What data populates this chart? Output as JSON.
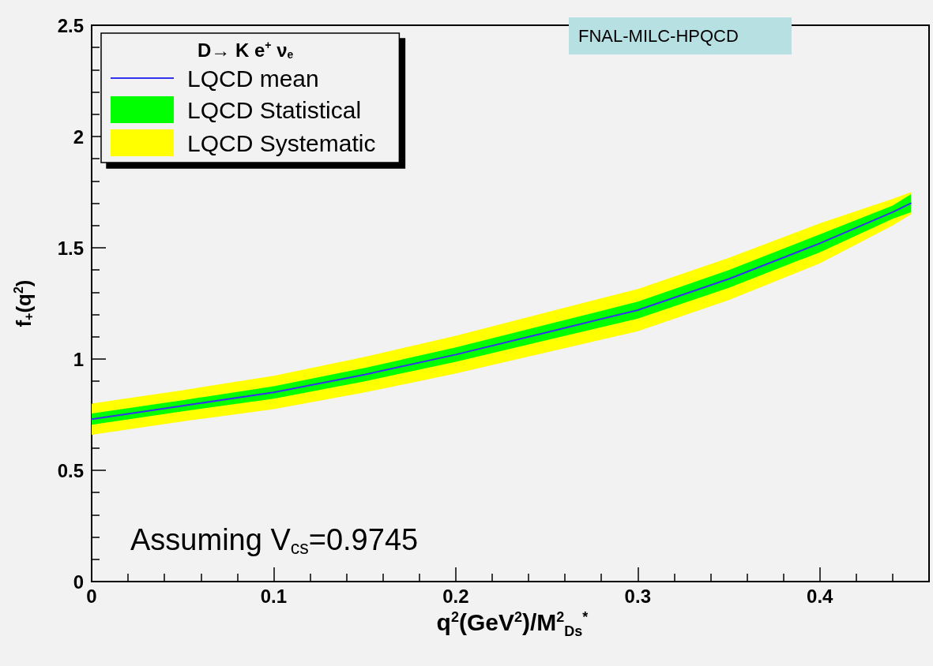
{
  "chart_data": {
    "type": "line",
    "xlabel": "q$^{2}$(GeV$^{2}$)/M$^{2}$$_{D}$$_{s}$$^{*}$",
    "ylabel": "f$_{+}$(q$^{2}$)",
    "legend_title": "D→ K e$^{+}$ ν$_{e}$",
    "legend": "top left",
    "x": [
      0,
      0.05,
      0.1,
      0.15,
      0.2,
      0.25,
      0.3,
      0.35,
      0.4,
      0.44,
      0.45
    ],
    "series": [
      {
        "name": "LQCD mean",
        "type": "line",
        "color": "#3333ee",
        "values": [
          0.73,
          0.79,
          0.85,
          0.93,
          1.02,
          1.12,
          1.22,
          1.36,
          1.52,
          1.66,
          1.7
        ]
      },
      {
        "name": "LQCD Statistical",
        "type": "line",
        "color": "#00ff00",
        "values": [
          null,
          null,
          null,
          null,
          null,
          null,
          null,
          null,
          null,
          null,
          null
        ],
        "lower": [
          0.705,
          0.765,
          0.822,
          0.9,
          0.988,
          1.085,
          1.182,
          1.32,
          1.48,
          1.63,
          1.66
        ],
        "upper": [
          0.755,
          0.815,
          0.878,
          0.96,
          1.052,
          1.155,
          1.258,
          1.4,
          1.56,
          1.69,
          1.74
        ]
      },
      {
        "name": "LQCD Systematic",
        "type": "line",
        "color": "#ffff00",
        "values": [
          null,
          null,
          null,
          null,
          null,
          null,
          null,
          null,
          null,
          null,
          null
        ],
        "lower": [
          0.66,
          0.72,
          0.775,
          0.85,
          0.935,
          1.03,
          1.125,
          1.265,
          1.43,
          1.6,
          1.65
        ],
        "upper": [
          0.8,
          0.86,
          0.925,
          1.01,
          1.105,
          1.21,
          1.315,
          1.455,
          1.61,
          1.72,
          1.75
        ]
      }
    ],
    "xlim": [
      0,
      0.46
    ],
    "xticks": [
      0,
      0.1,
      0.2,
      0.3,
      0.4
    ],
    "ylim": [
      0,
      2.5
    ],
    "yticks": [
      0,
      0.5,
      1,
      1.5,
      2,
      2.5
    ],
    "grid": false,
    "marker": "none",
    "line_style": "solid",
    "annotations": [
      "FNAL-MILC-HPQCD",
      "Assuming V$_{cs}$=0.9745"
    ]
  }
}
